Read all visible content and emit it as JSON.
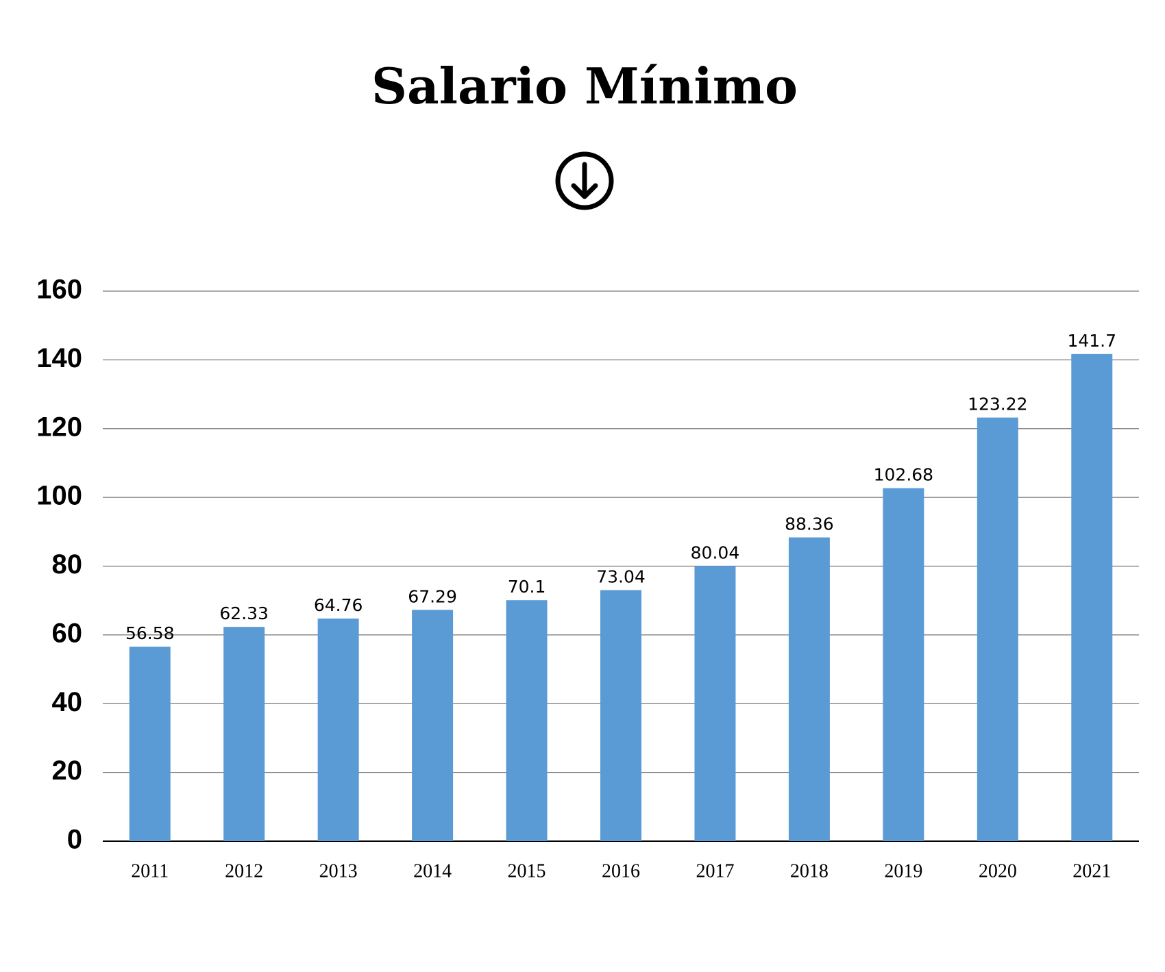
{
  "chart_data": {
    "type": "bar",
    "title": "Salario Mínimo",
    "categories": [
      "2011",
      "2012",
      "2013",
      "2014",
      "2015",
      "2016",
      "2017",
      "2018",
      "2019",
      "2020",
      "2021"
    ],
    "values": [
      56.58,
      62.33,
      64.76,
      67.29,
      70.1,
      73.04,
      80.04,
      88.36,
      102.68,
      123.22,
      141.7
    ],
    "color": "#5b9bd5",
    "ylim": [
      0,
      160
    ],
    "yticks": [
      0,
      20,
      40,
      60,
      80,
      100,
      120,
      140,
      160
    ],
    "grid": true
  }
}
